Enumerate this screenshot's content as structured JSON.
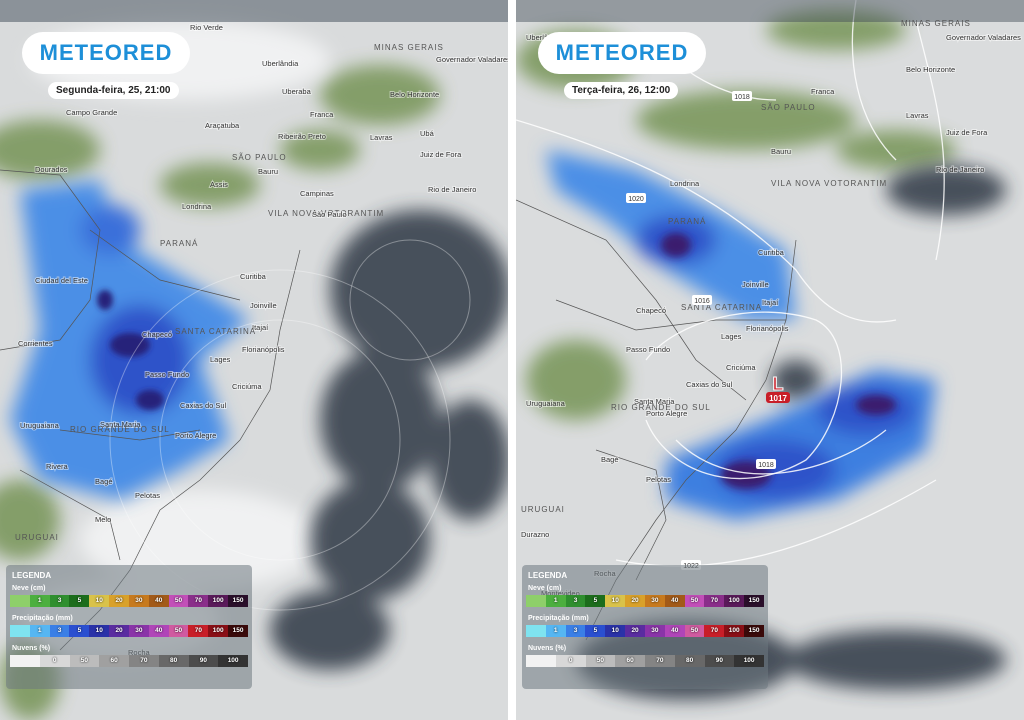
{
  "panels": [
    {
      "logo": "METEORED",
      "timestamp": "Segunda-feira, 25, 21:00",
      "places": [
        "Rio Verde",
        "Uberlândia",
        "Uberaba",
        "MINAS GERAIS",
        "Governador Valadares",
        "Belo Horizonte",
        "Campo Grande",
        "Franca",
        "Araçatuba",
        "Ribeirão Preto",
        "Lavras",
        "Ubá",
        "Juiz de Fora",
        "Dourados",
        "Assis",
        "SÃO PAULO",
        "Bauru",
        "Campinas",
        "Rio de Janeiro",
        "Londrina",
        "VILA NOVA VOTORANTIM",
        "São Paulo",
        "PARANÁ",
        "Curitiba",
        "Ciudad del Este",
        "Joinville",
        "Itajaí",
        "Chapecó",
        "SANTA CATARINA",
        "Florianópolis",
        "Lages",
        "Passo Fundo",
        "Criciúma",
        "Caxias do Sul",
        "Corrientes",
        "Santa Maria",
        "RIO GRANDE DO SUL",
        "Porto Alegre",
        "Uruguaiana",
        "Rivera",
        "Bagé",
        "Pelotas",
        "Melo",
        "URUGUAI",
        "Rocha"
      ],
      "legend": {
        "title": "LEGENDA",
        "snow": {
          "label": "Neve (cm)",
          "values": [
            "1",
            "3",
            "5",
            "10",
            "20",
            "30",
            "40",
            "50",
            "70",
            "100",
            "150"
          ]
        },
        "precip": {
          "label": "Precipitação (mm)",
          "values": [
            "1",
            "3",
            "5",
            "10",
            "20",
            "30",
            "40",
            "50",
            "70",
            "100",
            "150"
          ]
        },
        "clouds": {
          "label": "Nuvens (%)",
          "values": [
            "0",
            "50",
            "60",
            "70",
            "80",
            "90",
            "100"
          ]
        }
      }
    },
    {
      "logo": "METEORED",
      "timestamp": "Terça-feira, 26, 12:00",
      "places": [
        "Uberlândia",
        "MINAS GERAIS",
        "Governador Valadares",
        "Belo Horizonte",
        "Franca",
        "Lavras",
        "Juiz de Fora",
        "SÃO PAULO",
        "Bauru",
        "Rio de Janeiro",
        "Londrina",
        "VILA NOVA VOTORANTIM",
        "PARANÁ",
        "Curitiba",
        "Joinville",
        "Itajaí",
        "Chapecó",
        "SANTA CATARINA",
        "Florianópolis",
        "Lages",
        "Passo Fundo",
        "Criciúma",
        "Caxias do Sul",
        "Uruguaiana",
        "Santa Maria",
        "RIO GRANDE DO SUL",
        "Porto Alegre",
        "Bagé",
        "Pelotas",
        "URUGUAI",
        "Durazno",
        "Rocha",
        "Montevideo"
      ],
      "isobars": [
        "1018",
        "1020",
        "1016",
        "1018",
        "1022"
      ],
      "low": {
        "symbol": "L",
        "pressure": "1017"
      },
      "legend": {
        "title": "LEGENDA",
        "snow": {
          "label": "Neve (cm)",
          "values": [
            "1",
            "3",
            "5",
            "10",
            "20",
            "30",
            "40",
            "50",
            "70",
            "100",
            "150"
          ]
        },
        "precip": {
          "label": "Precipitação (mm)",
          "values": [
            "1",
            "3",
            "5",
            "10",
            "20",
            "30",
            "40",
            "50",
            "70",
            "100",
            "150"
          ]
        },
        "clouds": {
          "label": "Nuvens (%)",
          "values": [
            "0",
            "50",
            "60",
            "70",
            "80",
            "90",
            "100"
          ]
        }
      }
    }
  ]
}
